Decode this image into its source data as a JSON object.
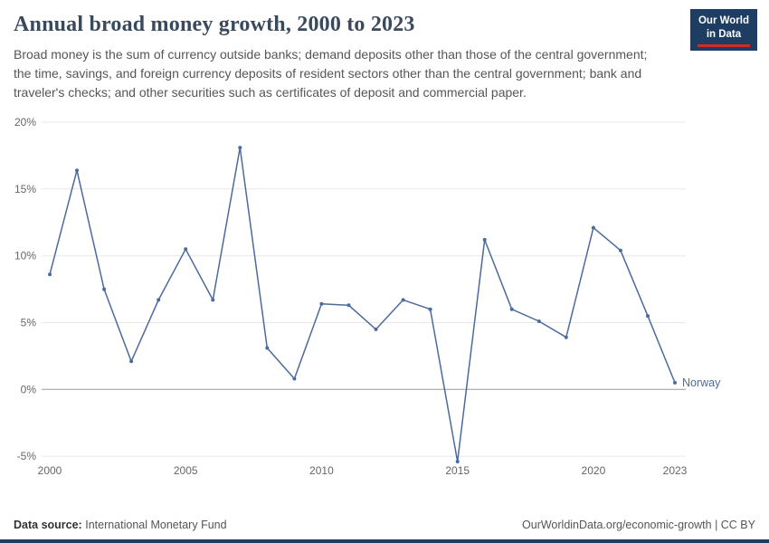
{
  "header": {
    "title": "Annual broad money growth, 2000 to 2023",
    "subtitle": "Broad money is the sum of currency outside banks; demand deposits other than those of the central government; the time, savings, and foreign currency deposits of resident sectors other than the central government; bank and traveler's checks; and other securities such as certificates of deposit and commercial paper.",
    "logo": {
      "line1": "Our World",
      "line2": "in Data"
    }
  },
  "chart_data": {
    "type": "line",
    "title": "Annual broad money growth, 2000 to 2023",
    "xlabel": "",
    "ylabel": "",
    "grid": true,
    "legend_position": "end-of-line-label",
    "xlim": [
      2000,
      2023
    ],
    "ylim": [
      -5.6,
      20
    ],
    "x_ticks": [
      2000,
      2005,
      2010,
      2015,
      2020,
      2023
    ],
    "y_ticks": [
      -5,
      0,
      5,
      10,
      15,
      20
    ],
    "y_tick_suffix": "%",
    "zero_line_color": "#999999",
    "gridline_color": "#e7e7e7",
    "series": [
      {
        "name": "Norway",
        "color": "#4c6a9c",
        "x": [
          2000,
          2001,
          2002,
          2003,
          2004,
          2005,
          2006,
          2007,
          2008,
          2009,
          2010,
          2011,
          2012,
          2013,
          2014,
          2015,
          2016,
          2017,
          2018,
          2019,
          2020,
          2021,
          2022,
          2023
        ],
        "values": [
          8.6,
          16.4,
          7.5,
          2.1,
          6.7,
          10.5,
          6.7,
          18.1,
          3.1,
          0.8,
          6.4,
          6.3,
          4.5,
          6.7,
          6.0,
          -5.4,
          11.2,
          6.0,
          5.1,
          3.9,
          12.1,
          10.4,
          5.5,
          0.5
        ]
      }
    ]
  },
  "footer": {
    "source_label": "Data source:",
    "source": "International Monetary Fund",
    "right": "OurWorldinData.org/economic-growth | CC BY"
  }
}
